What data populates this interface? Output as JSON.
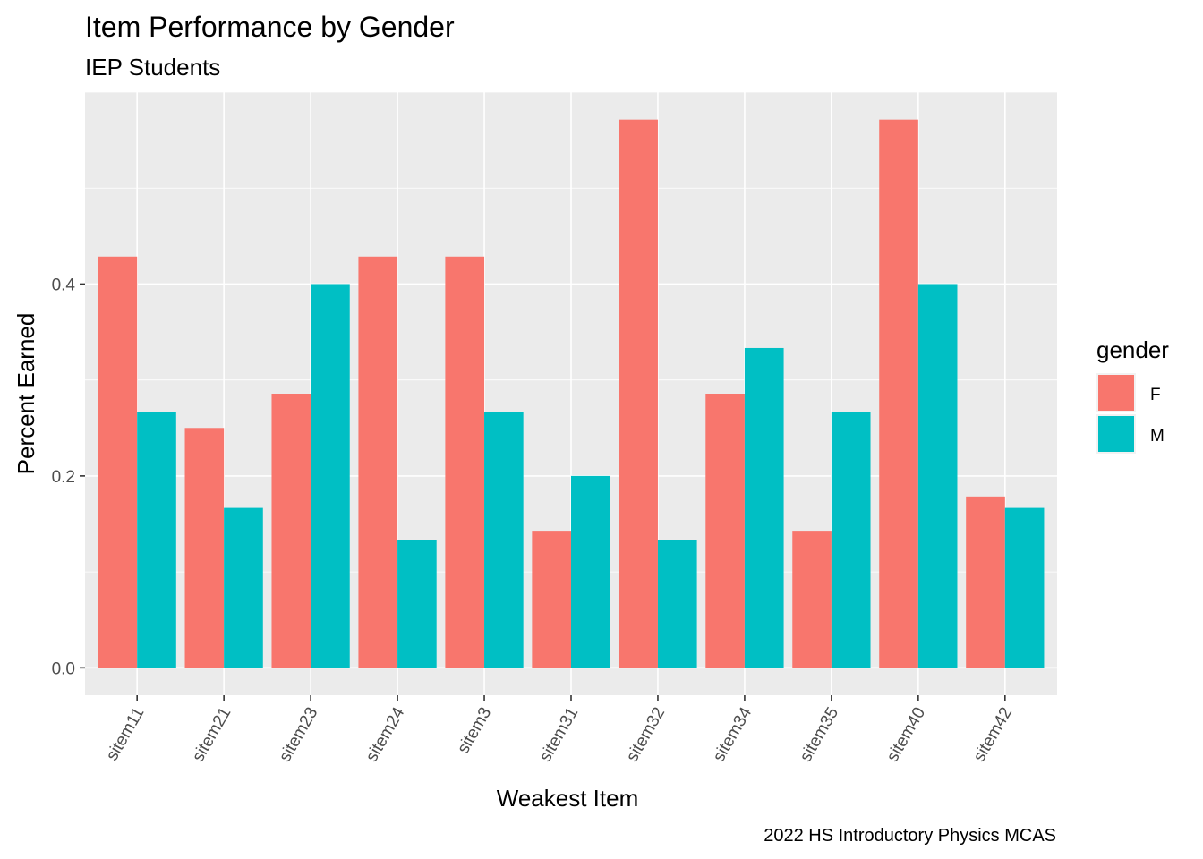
{
  "chart_data": {
    "type": "bar",
    "title": "Item Performance by Gender",
    "subtitle": "IEP Students",
    "xlabel": "Weakest Item",
    "ylabel": "Percent Earned",
    "caption": "2022 HS Introductory Physics MCAS",
    "categories": [
      "sitem11",
      "sitem21",
      "sitem23",
      "sitem24",
      "sitem3",
      "sitem31",
      "sitem32",
      "sitem34",
      "sitem35",
      "sitem40",
      "sitem42"
    ],
    "series": [
      {
        "name": "F",
        "color": "#F8766D",
        "values": [
          0.4286,
          0.25,
          0.2857,
          0.4286,
          0.4286,
          0.1429,
          0.5714,
          0.2857,
          0.1429,
          0.5714,
          0.1786
        ]
      },
      {
        "name": "M",
        "color": "#00BFC4",
        "values": [
          0.2667,
          0.1667,
          0.4,
          0.1333,
          0.2667,
          0.2,
          0.1333,
          0.3333,
          0.2667,
          0.4,
          0.1667
        ]
      }
    ],
    "ylim": [
      -0.0286,
      0.6
    ],
    "y_ticks": [
      0.0,
      0.2,
      0.4
    ],
    "y_tick_labels": [
      "0.0",
      "0.2",
      "0.4"
    ],
    "legend": {
      "title": "gender",
      "position": "right"
    },
    "panel_background": "#EBEBEB",
    "grid": true
  }
}
